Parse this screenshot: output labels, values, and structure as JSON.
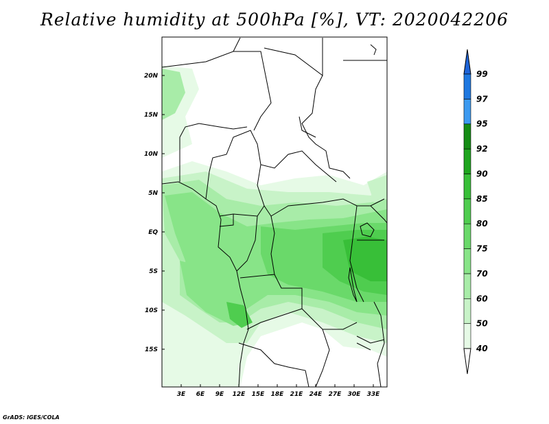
{
  "title": "Relative humidity at 500hPa [%], VT: 2020042206",
  "credit": "GrADS: IGES/COLA",
  "map": {
    "lat_ticks": [
      "20N",
      "15N",
      "10N",
      "5N",
      "EQ",
      "5S",
      "10S",
      "15S"
    ],
    "lon_ticks": [
      "3E",
      "6E",
      "9E",
      "12E",
      "15E",
      "18E",
      "21E",
      "24E",
      "27E",
      "30E",
      "33E"
    ]
  },
  "colorbar": {
    "levels": [
      "40",
      "50",
      "60",
      "70",
      "75",
      "80",
      "85",
      "90",
      "92",
      "95",
      "97",
      "99"
    ],
    "colors": [
      "#e6fae6",
      "#c8f3c8",
      "#a8eca8",
      "#88e488",
      "#6ad96a",
      "#4fcd4f",
      "#38bf38",
      "#1ea51e",
      "#148c14",
      "#3c9af0",
      "#1e78e0",
      "#1656c8"
    ],
    "over_color": "#1e64d8",
    "under_color": "#ffffff"
  }
}
